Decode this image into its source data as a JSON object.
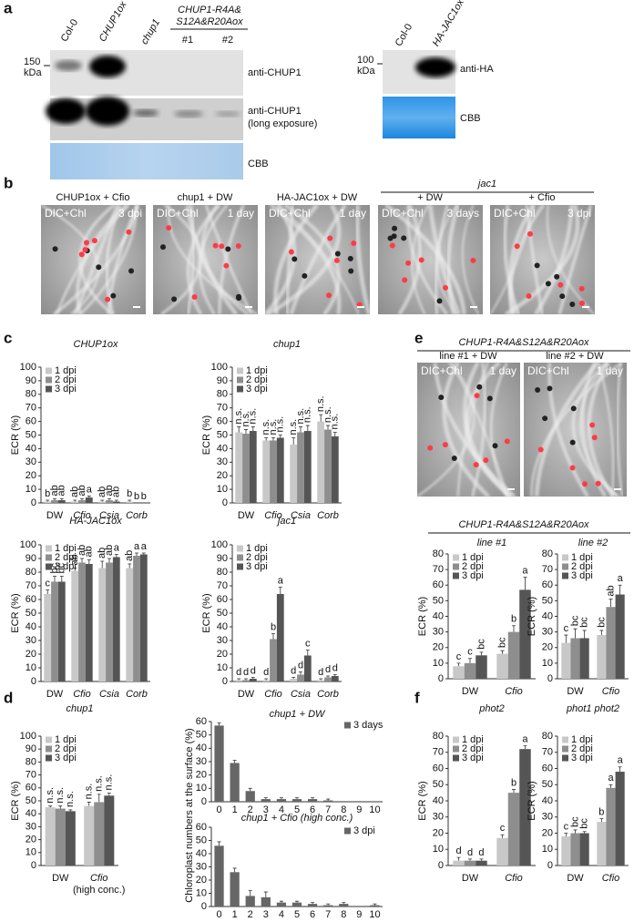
{
  "panel_a": {
    "label": "a",
    "lanes_left": [
      "Col-0",
      "CHUP1ox",
      "chup1"
    ],
    "mutant_group": [
      "CHUP1-R4A&",
      "S12A&R20Aox"
    ],
    "mutant_lanes": [
      "#1",
      "#2"
    ],
    "marker_left": [
      "150",
      "kDa"
    ],
    "rows_left": [
      "anti-CHUP1",
      [
        "anti-CHUP1",
        "(long exposure)"
      ],
      "CBB"
    ],
    "lanes_right": [
      "Col-0",
      "HA-JAC1ox"
    ],
    "marker_right": [
      "100",
      "kDa"
    ],
    "rows_right": [
      "anti-HA",
      "CBB"
    ]
  },
  "panel_b": {
    "label": "b",
    "group": "jac1",
    "images": [
      {
        "title": "CHUP1ox + Cfio",
        "channel": "DIC+Chl",
        "time": "3 dpi"
      },
      {
        "title": "chup1 + DW",
        "channel": "DIC+Chl",
        "time": "1 day"
      },
      {
        "title": "HA-JAC1ox + DW",
        "channel": "DIC+Chl",
        "time": "1 day"
      },
      {
        "title": "+ DW",
        "channel": "DIC+Chl",
        "time": "3 days"
      },
      {
        "title": "+ Cfio",
        "channel": "DIC+Chl",
        "time": "3 dpi"
      }
    ]
  },
  "panel_c": {
    "label": "c"
  },
  "panel_d": {
    "label": "d"
  },
  "panel_e": {
    "label": "e",
    "title": "CHUP1-R4A&S12A&R20Aox",
    "images": [
      {
        "title": "line #1 + DW",
        "channel": "DIC+Chl",
        "time": "1 day"
      },
      {
        "title": "line #2 + DW",
        "channel": "DIC+Chl",
        "time": "1 day"
      }
    ],
    "chart_title": "CHUP1-R4A&S12A&R20Aox"
  },
  "panel_f": {
    "label": "f"
  },
  "chart_data": [
    {
      "type": "bar",
      "title": "CHUP1ox",
      "ylabel": "ECR (%)",
      "categories": [
        "DW",
        "Cfio",
        "Csia",
        "Corb"
      ],
      "ylim": [
        0,
        100
      ],
      "yticks": [
        0,
        10,
        20,
        30,
        40,
        50,
        60,
        70,
        80,
        90,
        100
      ],
      "legend": "top-left",
      "series": [
        {
          "name": "1 dpi",
          "color": "#c8c8c8",
          "values": [
            1,
            1,
            1,
            1
          ],
          "errors": [
            1,
            1,
            1,
            1
          ],
          "labels": [
            "b",
            "ab",
            "ab",
            "b"
          ]
        },
        {
          "name": "2 dpi",
          "color": "#8e8e8e",
          "values": [
            2,
            2,
            2,
            0
          ],
          "errors": [
            1,
            1,
            1,
            0
          ],
          "labels": [
            "ab",
            "ab",
            "ab",
            "b"
          ]
        },
        {
          "name": "3 dpi",
          "color": "#555555",
          "values": [
            2,
            4,
            1,
            0
          ],
          "errors": [
            1,
            1,
            1,
            0
          ],
          "labels": [
            "ab",
            "a",
            "ab",
            "b"
          ]
        }
      ]
    },
    {
      "type": "bar",
      "title": "chup1",
      "ylabel": "ECR (%)",
      "categories": [
        "DW",
        "Cfio",
        "Csia",
        "Corb"
      ],
      "ylim": [
        0,
        100
      ],
      "yticks": [
        0,
        10,
        20,
        30,
        40,
        50,
        60,
        70,
        80,
        90,
        100
      ],
      "legend": "top-left",
      "series": [
        {
          "name": "1 dpi",
          "color": "#c8c8c8",
          "values": [
            52,
            46,
            43,
            60
          ],
          "errors": [
            4,
            2,
            5,
            5
          ],
          "labels": [
            "n.s.",
            "n.s.",
            "n.s.",
            "n.s."
          ]
        },
        {
          "name": "2 dpi",
          "color": "#8e8e8e",
          "values": [
            51,
            46,
            52,
            54
          ],
          "errors": [
            3,
            2,
            4,
            3
          ],
          "labels": [
            "n.s.",
            "n.s.",
            "n.s.",
            "n.s."
          ]
        },
        {
          "name": "3 dpi",
          "color": "#555555",
          "values": [
            53,
            48,
            53,
            49
          ],
          "errors": [
            3,
            2,
            4,
            3
          ],
          "labels": [
            "n.s.",
            "n.s.",
            "n.s.",
            "n.s."
          ]
        }
      ]
    },
    {
      "type": "bar",
      "title": "HA-JAC1ox",
      "ylabel": "ECR (%)",
      "categories": [
        "DW",
        "Cfio",
        "Csia",
        "Corb"
      ],
      "ylim": [
        0,
        100
      ],
      "yticks": [
        0,
        10,
        20,
        30,
        40,
        50,
        60,
        70,
        80,
        90,
        100
      ],
      "legend": "top-left",
      "series": [
        {
          "name": "1 dpi",
          "color": "#c8c8c8",
          "values": [
            64,
            81,
            83,
            83
          ],
          "errors": [
            3,
            2,
            5,
            3
          ],
          "labels": [
            "c",
            "ab",
            "ab",
            "ab"
          ]
        },
        {
          "name": "2 dpi",
          "color": "#8e8e8e",
          "values": [
            73,
            87,
            87,
            92
          ],
          "errors": [
            4,
            3,
            3,
            2
          ],
          "labels": [
            "bc",
            "ab",
            "ab",
            "a"
          ]
        },
        {
          "name": "3 dpi",
          "color": "#555555",
          "values": [
            73,
            86,
            91,
            93
          ],
          "errors": [
            4,
            3,
            2,
            1
          ],
          "labels": [
            "bc",
            "ab",
            "a",
            "a"
          ]
        }
      ]
    },
    {
      "type": "bar",
      "title": "jac1",
      "ylabel": "ECR (%)",
      "categories": [
        "DW",
        "Cfio",
        "Csia",
        "Corb"
      ],
      "ylim": [
        0,
        100
      ],
      "yticks": [
        0,
        10,
        20,
        30,
        40,
        50,
        60,
        70,
        80,
        90,
        100
      ],
      "legend": "top-left",
      "series": [
        {
          "name": "1 dpi",
          "color": "#c8c8c8",
          "values": [
            1,
            1,
            2,
            1
          ],
          "errors": [
            1,
            1,
            1,
            1
          ],
          "labels": [
            "d",
            "d",
            "d",
            "d"
          ]
        },
        {
          "name": "2 dpi",
          "color": "#8e8e8e",
          "values": [
            1,
            31,
            5,
            3
          ],
          "errors": [
            1,
            4,
            2,
            1
          ],
          "labels": [
            "d",
            "b",
            "d",
            "d"
          ]
        },
        {
          "name": "3 dpi",
          "color": "#555555",
          "values": [
            2,
            64,
            19,
            4
          ],
          "errors": [
            1,
            5,
            4,
            1
          ],
          "labels": [
            "d",
            "a",
            "c",
            "d"
          ]
        }
      ]
    },
    {
      "type": "bar",
      "title": "chup1",
      "ylabel": "ECR (%)",
      "categories": [
        "DW",
        "Cfio"
      ],
      "xlabel_note": "(high conc.)",
      "ylim": [
        0,
        100
      ],
      "yticks": [
        0,
        10,
        20,
        30,
        40,
        50,
        60,
        70,
        80,
        90,
        100
      ],
      "legend": "top-left",
      "series": [
        {
          "name": "1 dpi",
          "color": "#c8c8c8",
          "values": [
            45,
            46
          ],
          "errors": [
            1,
            3
          ],
          "labels": [
            "n.s.",
            "n.s."
          ]
        },
        {
          "name": "2 dpi",
          "color": "#8e8e8e",
          "values": [
            44,
            49
          ],
          "errors": [
            2,
            6
          ],
          "labels": [
            "n.s.",
            "n.s."
          ]
        },
        {
          "name": "3 dpi",
          "color": "#555555",
          "values": [
            42,
            54
          ],
          "errors": [
            1,
            2
          ],
          "labels": [
            "n.s.",
            "n.s."
          ]
        }
      ]
    },
    {
      "type": "bar",
      "title": "chup1 + DW",
      "ylabel": "Chloroplast numbers at the surface (%)",
      "categories": [
        "0",
        "1",
        "2",
        "3",
        "4",
        "5",
        "6",
        "7",
        "8",
        "9",
        "10"
      ],
      "ylim": [
        0,
        60
      ],
      "yticks": [
        0,
        10,
        20,
        30,
        40,
        50,
        60
      ],
      "legend": "top-right",
      "series": [
        {
          "name": "3 days",
          "color": "#666666",
          "values": [
            57,
            29,
            8,
            2,
            2,
            2,
            2,
            1,
            0,
            0,
            0
          ],
          "errors": [
            2,
            2,
            2,
            1,
            1,
            1,
            1,
            1,
            0,
            0,
            0
          ]
        }
      ]
    },
    {
      "type": "bar",
      "title": "chup1 + Cfio (high conc.)",
      "categories": [
        "0",
        "1",
        "2",
        "3",
        "4",
        "5",
        "6",
        "7",
        "8",
        "9",
        "10"
      ],
      "ylim": [
        0,
        60
      ],
      "yticks": [
        0,
        10,
        20,
        30,
        40,
        50,
        60
      ],
      "legend": "top-right",
      "series": [
        {
          "name": "3 dpi",
          "color": "#666666",
          "values": [
            46,
            26,
            8,
            7,
            3,
            3,
            2,
            1,
            2,
            0,
            1
          ],
          "errors": [
            3,
            3,
            4,
            4,
            1,
            1,
            1,
            1,
            1,
            0,
            1
          ]
        }
      ]
    },
    {
      "type": "bar",
      "title": "line #1",
      "ylabel": "ECR (%)",
      "categories": [
        "DW",
        "Cfio"
      ],
      "ylim": [
        0,
        80
      ],
      "yticks": [
        0,
        10,
        20,
        30,
        40,
        50,
        60,
        70,
        80
      ],
      "legend": "top-left",
      "series": [
        {
          "name": "1 dpi",
          "color": "#c8c8c8",
          "values": [
            8,
            16
          ],
          "errors": [
            2,
            2
          ],
          "labels": [
            "c",
            "bc"
          ]
        },
        {
          "name": "2 dpi",
          "color": "#8e8e8e",
          "values": [
            10,
            30
          ],
          "errors": [
            3,
            4
          ],
          "labels": [
            "c",
            "b"
          ]
        },
        {
          "name": "3 dpi",
          "color": "#555555",
          "values": [
            15,
            57
          ],
          "errors": [
            2,
            8
          ],
          "labels": [
            "bc",
            "a"
          ]
        }
      ]
    },
    {
      "type": "bar",
      "title": "line #2",
      "ylabel": "ECR (%)",
      "categories": [
        "DW",
        "Cfio"
      ],
      "ylim": [
        0,
        80
      ],
      "yticks": [
        0,
        10,
        20,
        30,
        40,
        50,
        60,
        70,
        80
      ],
      "legend": "top-left",
      "series": [
        {
          "name": "1 dpi",
          "color": "#c8c8c8",
          "values": [
            23,
            28
          ],
          "errors": [
            5,
            3
          ],
          "labels": [
            "c",
            "bc"
          ]
        },
        {
          "name": "2 dpi",
          "color": "#8e8e8e",
          "values": [
            26,
            46
          ],
          "errors": [
            6,
            5
          ],
          "labels": [
            "bc",
            "ab"
          ]
        },
        {
          "name": "3 dpi",
          "color": "#555555",
          "values": [
            26,
            54
          ],
          "errors": [
            5,
            6
          ],
          "labels": [
            "bc",
            "a"
          ]
        }
      ]
    },
    {
      "type": "bar",
      "title": "phot2",
      "ylabel": "ECR (%)",
      "categories": [
        "DW",
        "Cfio"
      ],
      "ylim": [
        0,
        80
      ],
      "yticks": [
        0,
        10,
        20,
        30,
        40,
        50,
        60,
        70,
        80
      ],
      "legend": "top-left",
      "series": [
        {
          "name": "1 dpi",
          "color": "#c8c8c8",
          "values": [
            3,
            17
          ],
          "errors": [
            2,
            2
          ],
          "labels": [
            "d",
            "c"
          ]
        },
        {
          "name": "2 dpi",
          "color": "#8e8e8e",
          "values": [
            3,
            45
          ],
          "errors": [
            1,
            2
          ],
          "labels": [
            "d",
            "b"
          ]
        },
        {
          "name": "3 dpi",
          "color": "#555555",
          "values": [
            3,
            72
          ],
          "errors": [
            1,
            2
          ],
          "labels": [
            "d",
            "a"
          ]
        }
      ]
    },
    {
      "type": "bar",
      "title": "phot1 phot2",
      "ylabel": "ECR (%)",
      "categories": [
        "DW",
        "Cfio"
      ],
      "ylim": [
        0,
        80
      ],
      "yticks": [
        0,
        10,
        20,
        30,
        40,
        50,
        60,
        70,
        80
      ],
      "legend": "top-left",
      "series": [
        {
          "name": "1 dpi",
          "color": "#c8c8c8",
          "values": [
            18,
            27
          ],
          "errors": [
            2,
            2
          ],
          "labels": [
            "c",
            "b"
          ]
        },
        {
          "name": "2 dpi",
          "color": "#8e8e8e",
          "values": [
            20,
            48
          ],
          "errors": [
            2,
            2
          ],
          "labels": [
            "bc",
            "a"
          ]
        },
        {
          "name": "3 dpi",
          "color": "#555555",
          "values": [
            20,
            58
          ],
          "errors": [
            1,
            3
          ],
          "labels": [
            "bc",
            "a"
          ]
        }
      ]
    }
  ]
}
